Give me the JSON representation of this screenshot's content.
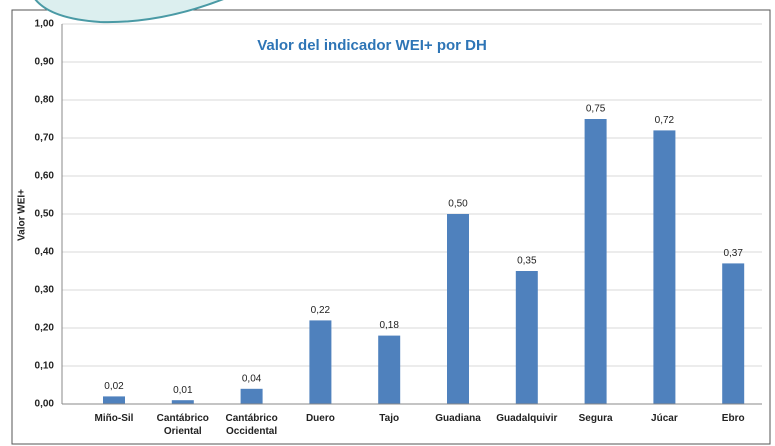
{
  "chart_data": {
    "type": "bar",
    "title": "Valor del indicador WEI+ por DH",
    "y_label": "Valor WEI+",
    "categories": [
      "Miño-Sil",
      "Cantábrico Oriental",
      "Cantábrico Occidental",
      "Duero",
      "Tajo",
      "Guadiana",
      "Guadalquivir",
      "Segura",
      "Júcar",
      "Ebro"
    ],
    "values": [
      0.02,
      0.01,
      0.04,
      0.22,
      0.18,
      0.5,
      0.35,
      0.75,
      0.72,
      0.37
    ],
    "value_labels": [
      "0,02",
      "0,01",
      "0,04",
      "0,22",
      "0,18",
      "0,50",
      "0,35",
      "0,75",
      "0,72",
      "0,37"
    ],
    "color": "#4f81bd",
    "ylim": [
      0,
      1
    ],
    "yticks": [
      {
        "value": 0,
        "label": "0,00"
      },
      {
        "value": 0.1,
        "label": "0,10"
      },
      {
        "value": 0.2,
        "label": "0,20"
      },
      {
        "value": 0.3,
        "label": "0,30"
      },
      {
        "value": 0.4,
        "label": "0,40"
      },
      {
        "value": 0.5,
        "label": "0,50"
      },
      {
        "value": 0.6,
        "label": "0,60"
      },
      {
        "value": 0.7,
        "label": "0,70"
      },
      {
        "value": 0.8,
        "label": "0,80"
      },
      {
        "value": 0.9,
        "label": "0,90"
      },
      {
        "value": 1,
        "label": "1,00"
      }
    ],
    "grid": true
  }
}
